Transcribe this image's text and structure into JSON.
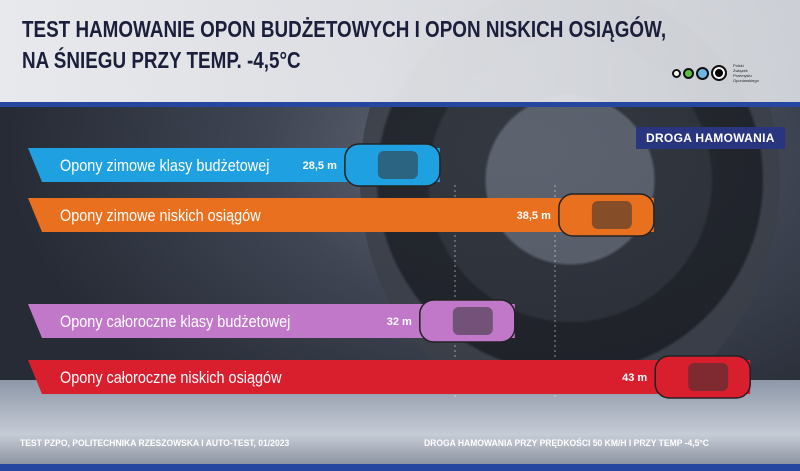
{
  "header": {
    "title_line1": "TEST HAMOWANIE OPON BUDŻETOWYCH I OPON NISKICH OSIĄGÓW,",
    "title_line2": "NA ŚNIEGU PRZY TEMP. -4,5°C",
    "logo_text": "Polski Związek Przemysłu Oponiarskiego"
  },
  "legend": {
    "label": "DROGA HAMOWANIA"
  },
  "footer": {
    "source": "TEST PZPO, POLITECHNIKA RZESZOWSKA I AUTO-TEST, 01/2023",
    "note": "DROGA HAMOWANIA PRZY PRĘDKOŚCI 50 KM/H I PRZY TEMP -4,5°C"
  },
  "chart_data": {
    "type": "bar",
    "orientation": "horizontal",
    "title": "TEST HAMOWANIE OPON BUDŻETOWYCH I OPON NISKICH OSIĄGÓW, NA ŚNIEGU PRZY TEMP. -4,5°C",
    "unit": "m",
    "categories": [
      "Opony zimowe klasy budżetowej",
      "Opony zimowe niskich osiągów",
      "Opony całoroczne klasy budżetowej",
      "Opony całoroczne niskich osiągów"
    ],
    "values": [
      28.5,
      38.5,
      32,
      43
    ],
    "value_labels": [
      "28,5 m",
      "38,5 m",
      "32 m",
      "43 m"
    ],
    "colors": [
      "#1fa0e0",
      "#e8701e",
      "#c178c9",
      "#d91f2e"
    ]
  }
}
